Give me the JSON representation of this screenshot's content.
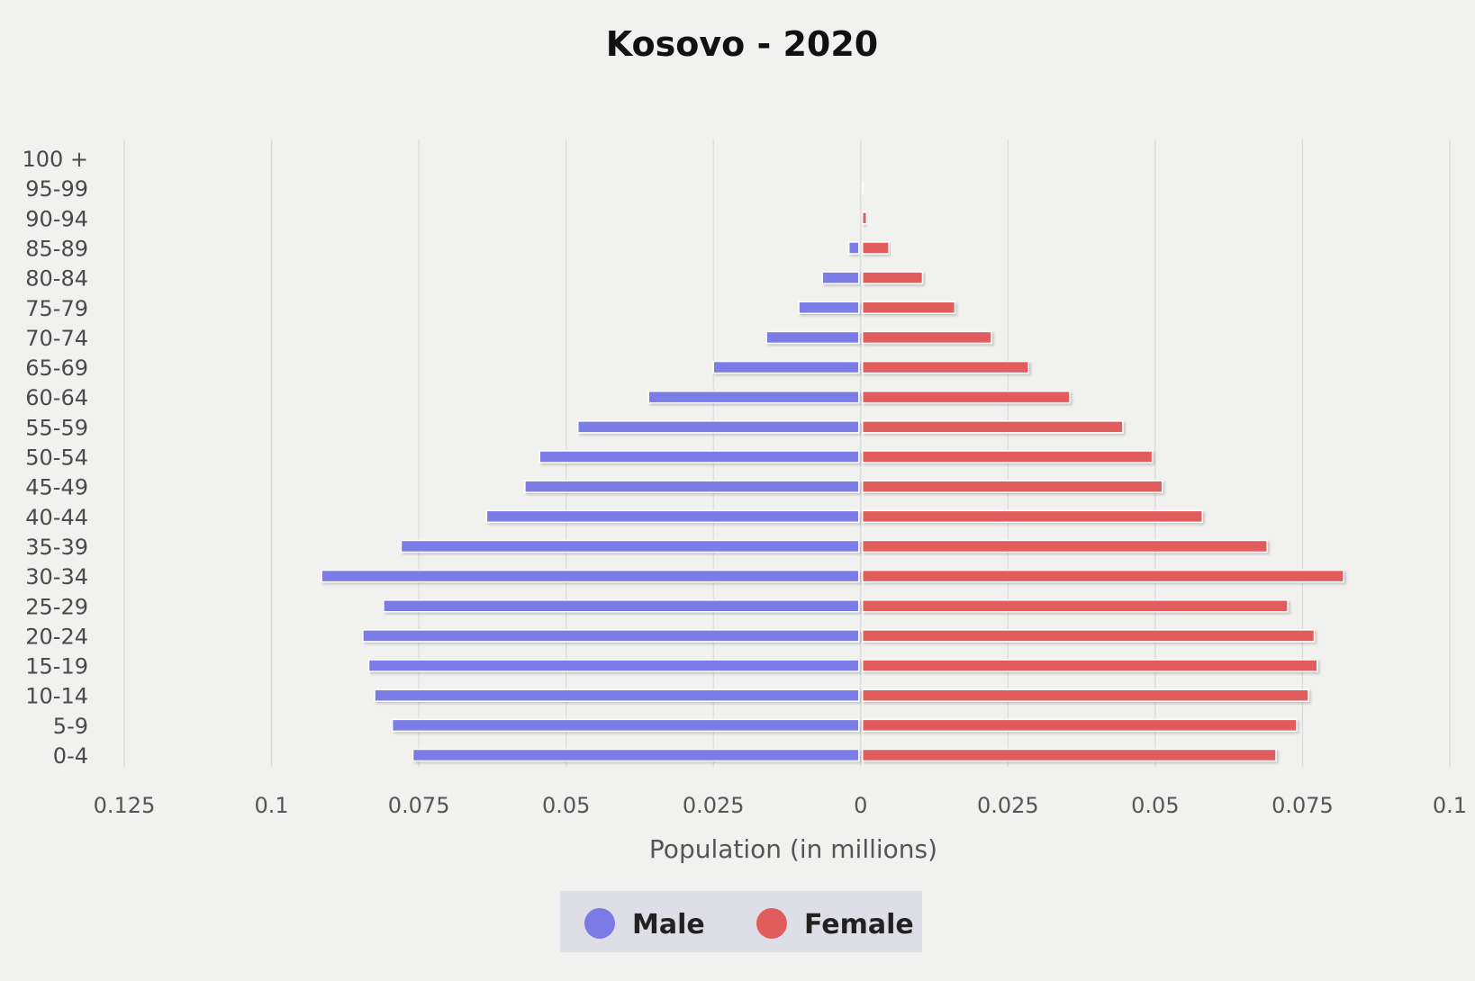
{
  "chart_data": {
    "type": "bar",
    "orientation": "horizontal",
    "title": "Kosovo - 2020",
    "xlabel": "Population (in millions)",
    "ylabel": "",
    "categories": [
      "100 +",
      "95-99",
      "90-94",
      "85-89",
      "80-84",
      "75-79",
      "70-74",
      "65-69",
      "60-64",
      "55-59",
      "50-54",
      "45-49",
      "40-44",
      "35-39",
      "30-34",
      "25-29",
      "20-24",
      "15-19",
      "10-14",
      "5-9",
      "0-4"
    ],
    "series": [
      {
        "name": "Male",
        "color": "#7b7be6",
        "values": [
          0,
          0,
          0,
          0.002,
          0.0065,
          0.0105,
          0.016,
          0.025,
          0.036,
          0.048,
          0.0545,
          0.057,
          0.0635,
          0.078,
          0.0915,
          0.081,
          0.0845,
          0.0835,
          0.0825,
          0.0795,
          0.076
        ]
      },
      {
        "name": "Female",
        "color": "#e15c5c",
        "values": [
          0,
          0.0002,
          0.001,
          0.0048,
          0.0105,
          0.016,
          0.0222,
          0.0285,
          0.0355,
          0.0445,
          0.0495,
          0.0512,
          0.058,
          0.069,
          0.082,
          0.0725,
          0.077,
          0.0775,
          0.076,
          0.074,
          0.0705
        ]
      }
    ],
    "xticks": [
      "0.125",
      "0.1",
      "0.075",
      "0.05",
      "0.025",
      "0",
      "0.025",
      "0.05",
      "0.075",
      "0.1"
    ],
    "xlim": [
      -0.125,
      0.1
    ],
    "grid": true,
    "legend_position": "bottom-center"
  },
  "legend": {
    "items": [
      {
        "label": "Male",
        "color": "#7b7be6"
      },
      {
        "label": "Female",
        "color": "#e15c5c"
      }
    ]
  }
}
